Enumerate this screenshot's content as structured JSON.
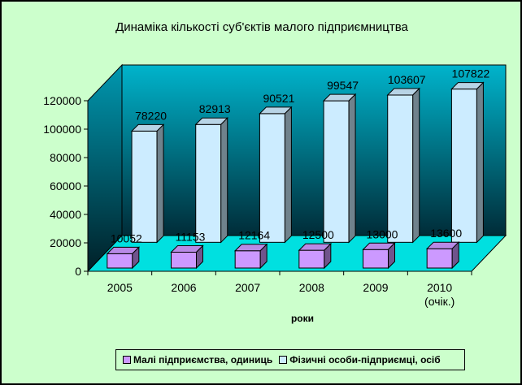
{
  "chart_data": {
    "type": "bar",
    "title": "Динаміка кількості суб'єктів малого підприємництва",
    "xlabel": "роки",
    "ylabel": "",
    "ylim": [
      0,
      120000
    ],
    "yticks": [
      "0",
      "20000",
      "40000",
      "60000",
      "80000",
      "100000",
      "120000"
    ],
    "categories": [
      "2005",
      "2006",
      "2007",
      "2008",
      "2009",
      "2010 (очік.)"
    ],
    "series": [
      {
        "name": "Малі підприємства, одиниць",
        "values": [
          10052,
          11153,
          12164,
          12500,
          13000,
          13600
        ],
        "labels": [
          "10052",
          "11153",
          "12164",
          "12500",
          "13000",
          "13600"
        ],
        "color": "#cc99ff"
      },
      {
        "name": "Фізичні особи-підприємці, осіб",
        "values": [
          78220,
          82913,
          90521,
          99547,
          103607,
          107822
        ],
        "labels": [
          "78220",
          "82913",
          "90521",
          "99547",
          "103607",
          "107822"
        ],
        "color": "#ccecff"
      }
    ],
    "legend_position": "bottom",
    "grid": false,
    "colors": {
      "background": "#ccffcc",
      "wall_top": "#00b0c8",
      "wall_bottom": "#00303c",
      "floor": "#00e0e0"
    }
  }
}
